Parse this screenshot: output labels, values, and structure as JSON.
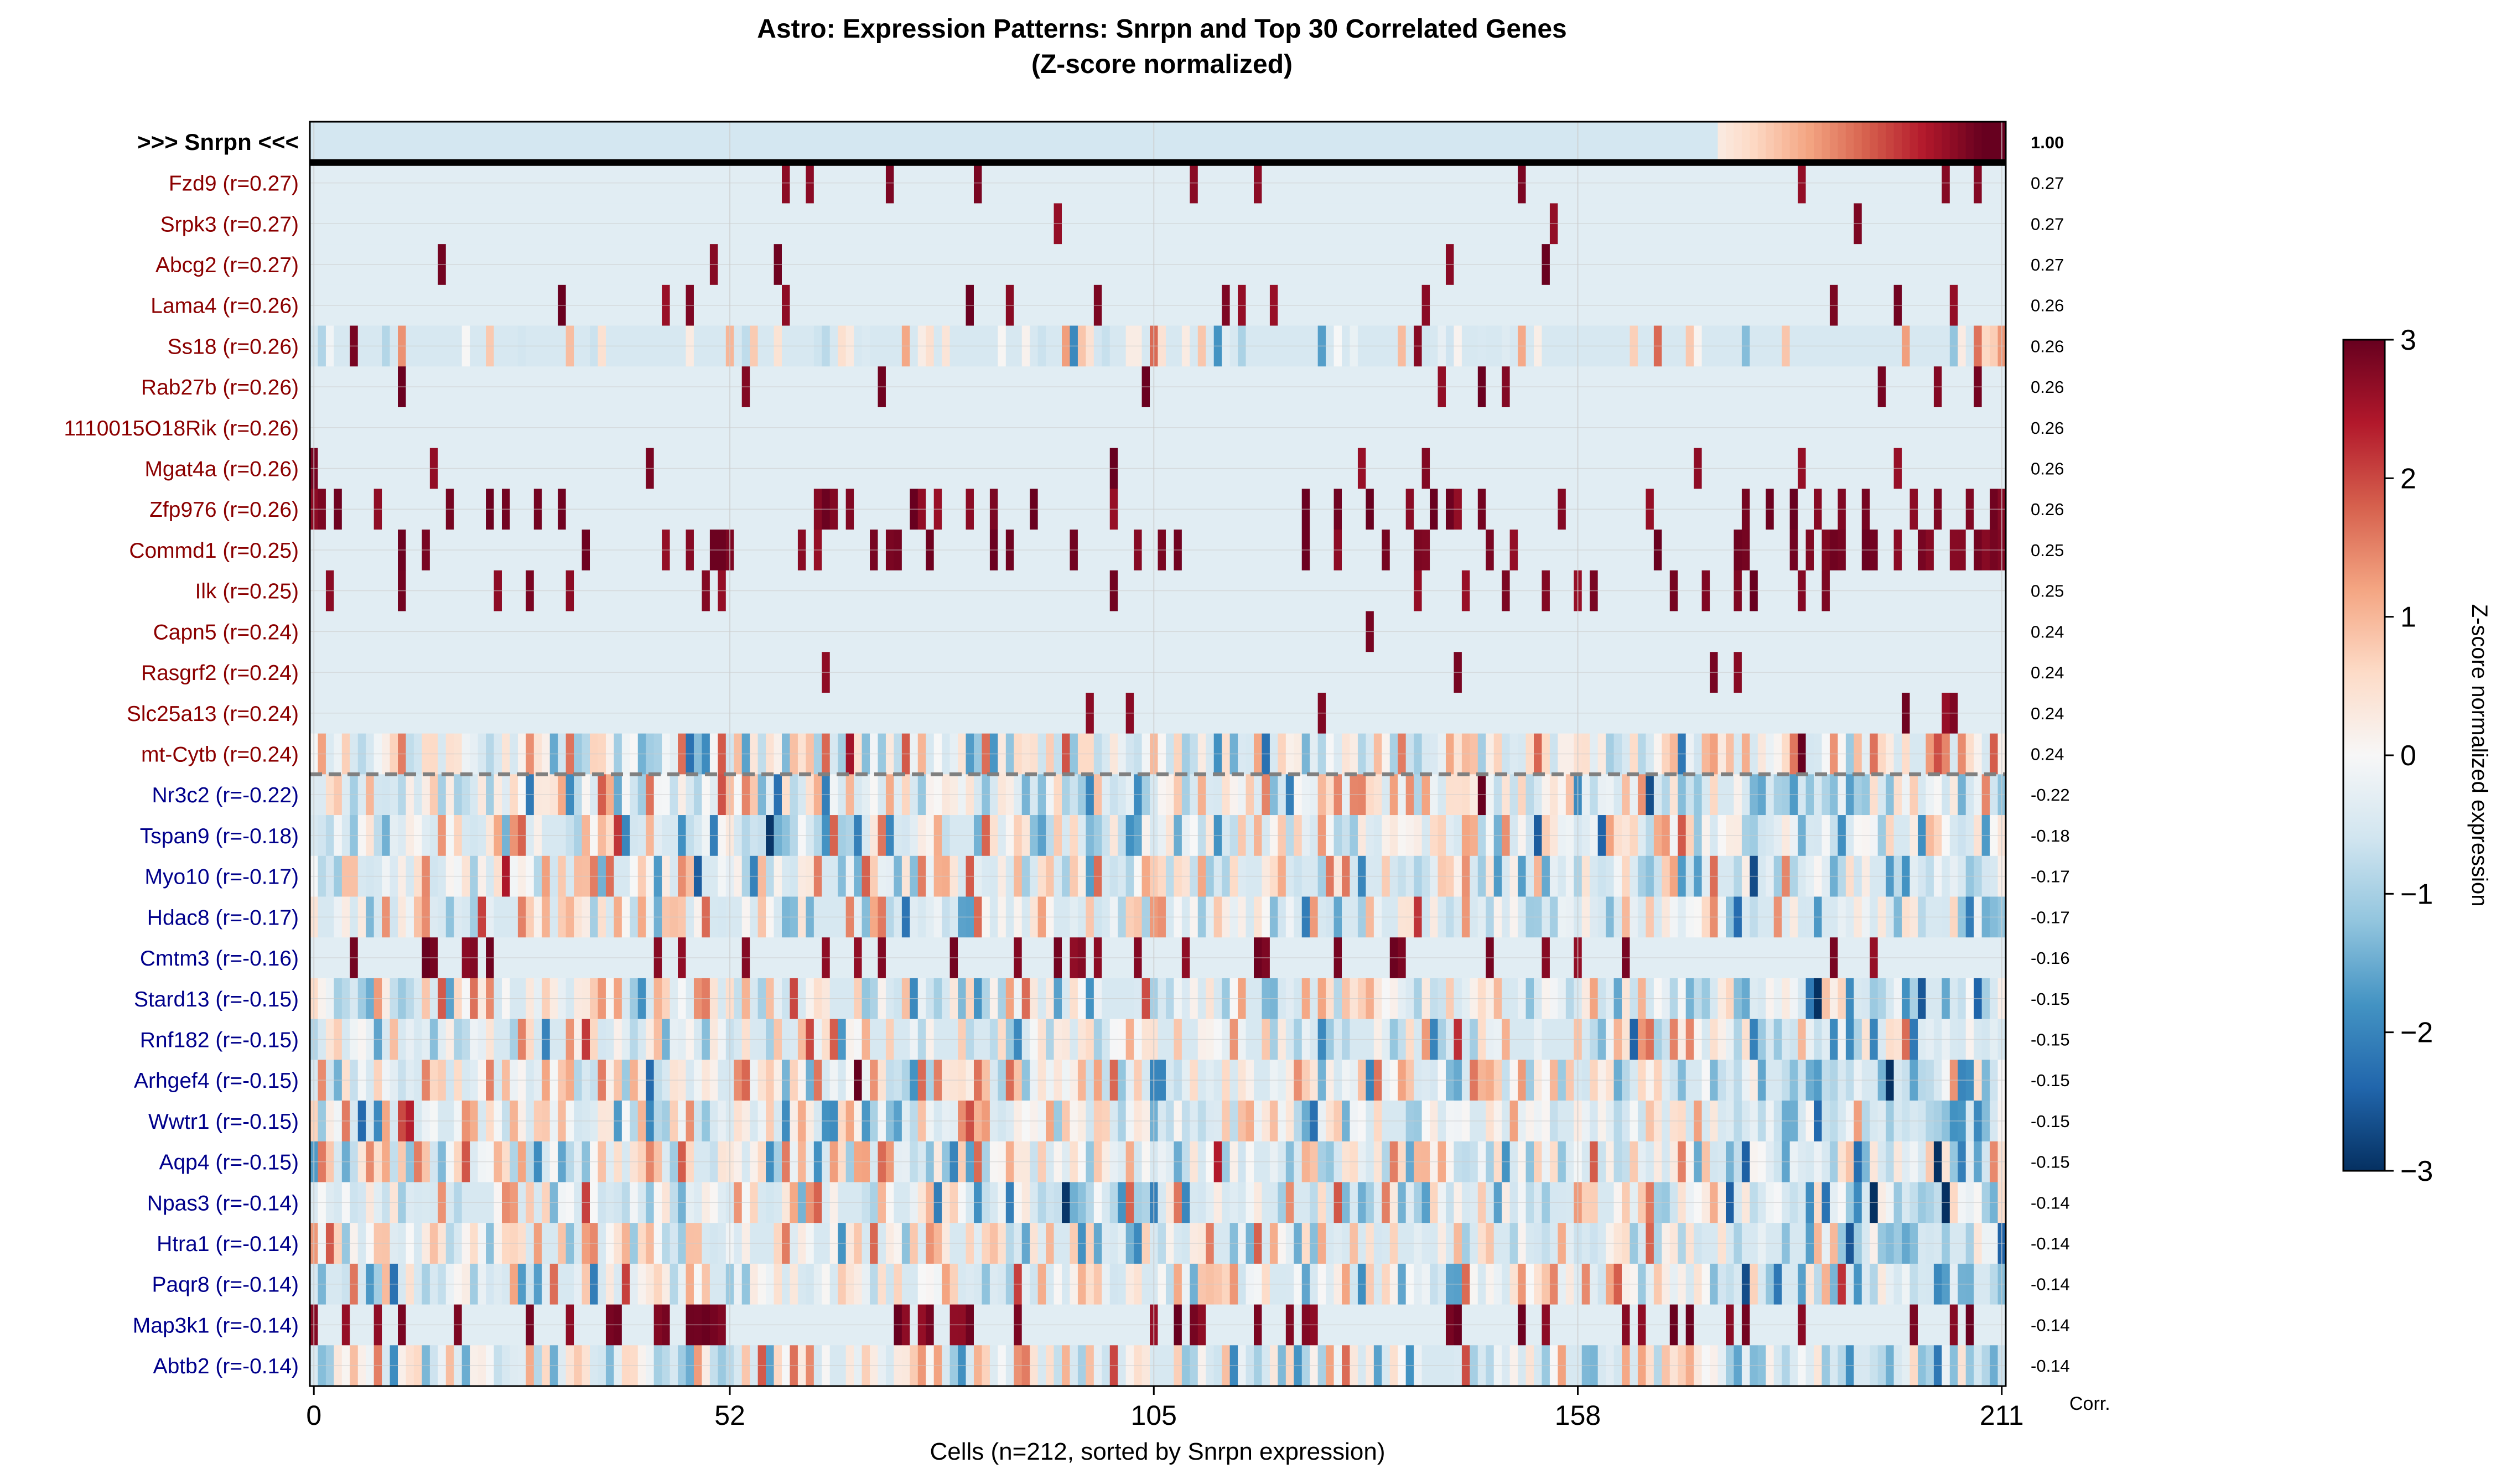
{
  "chart_data": {
    "type": "heatmap",
    "title": "Astro: Expression Patterns: Snrpn and Top 30 Correlated Genes",
    "subtitle": "(Z-score normalized)",
    "xlabel": "Cells (n=212, sorted by Snrpn expression)",
    "x_ticks": [
      0,
      52,
      105,
      158,
      211
    ],
    "n_cells": 212,
    "corr_label": "Corr.",
    "colorbar": {
      "label": "Z-score normalized expression",
      "min": -3,
      "max": 3,
      "ticks": [
        "3",
        "2",
        "1",
        "0",
        "−1",
        "−2",
        "−3"
      ],
      "colormap": "RdBu_r"
    },
    "colors": {
      "positive_label": "#8b0000",
      "negative_label": "#00008b",
      "target_label": "#000000",
      "separator": "#000000",
      "dashed_separator": "#808080",
      "grid": "#cccccc"
    },
    "target_row": {
      "label": ">>> Snrpn <<<",
      "corr": "1.00"
    },
    "rows": [
      {
        "label": "Fzd9 (r=0.27)",
        "corr": "0.27",
        "sign": "pos",
        "style": "sparse",
        "density": 0.06
      },
      {
        "label": "Srpk3 (r=0.27)",
        "corr": "0.27",
        "sign": "pos",
        "style": "sparse",
        "density": 0.015
      },
      {
        "label": "Abcg2 (r=0.27)",
        "corr": "0.27",
        "sign": "pos",
        "style": "sparse",
        "density": 0.015
      },
      {
        "label": "Lama4 (r=0.26)",
        "corr": "0.26",
        "sign": "pos",
        "style": "sparse",
        "density": 0.04
      },
      {
        "label": "Ss18 (r=0.26)",
        "corr": "0.26",
        "sign": "pos",
        "style": "dense",
        "density": 0.35
      },
      {
        "label": "Rab27b (r=0.26)",
        "corr": "0.26",
        "sign": "pos",
        "style": "sparse",
        "density": 0.03
      },
      {
        "label": "1110015O18Rik (r=0.26)",
        "corr": "0.26",
        "sign": "pos",
        "style": "sparse",
        "density": 0.005
      },
      {
        "label": "Mgat4a (r=0.26)",
        "corr": "0.26",
        "sign": "pos",
        "style": "sparse",
        "density": 0.03
      },
      {
        "label": "Zfp976 (r=0.26)",
        "corr": "0.26",
        "sign": "pos",
        "style": "sparse",
        "density": 0.12
      },
      {
        "label": "Commd1 (r=0.25)",
        "corr": "0.25",
        "sign": "pos",
        "style": "sparse",
        "density": 0.22
      },
      {
        "label": "Ilk (r=0.25)",
        "corr": "0.25",
        "sign": "pos",
        "style": "sparse",
        "density": 0.07
      },
      {
        "label": "Capn5 (r=0.24)",
        "corr": "0.24",
        "sign": "pos",
        "style": "sparse",
        "density": 0.01
      },
      {
        "label": "Rasgrf2 (r=0.24)",
        "corr": "0.24",
        "sign": "pos",
        "style": "sparse",
        "density": 0.03
      },
      {
        "label": "Slc25a13 (r=0.24)",
        "corr": "0.24",
        "sign": "pos",
        "style": "sparse",
        "density": 0.03
      },
      {
        "label": "mt-Cytb (r=0.24)",
        "corr": "0.24",
        "sign": "pos",
        "style": "dense",
        "density": 0.9
      },
      {
        "label": "Nr3c2 (r=-0.22)",
        "corr": "-0.22",
        "sign": "neg",
        "style": "dense",
        "density": 0.9
      },
      {
        "label": "Tspan9 (r=-0.18)",
        "corr": "-0.18",
        "sign": "neg",
        "style": "dense",
        "density": 0.85
      },
      {
        "label": "Myo10 (r=-0.17)",
        "corr": "-0.17",
        "sign": "neg",
        "style": "dense",
        "density": 0.85
      },
      {
        "label": "Hdac8 (r=-0.17)",
        "corr": "-0.17",
        "sign": "neg",
        "style": "dense",
        "density": 0.7
      },
      {
        "label": "Cmtm3 (r=-0.16)",
        "corr": "-0.16",
        "sign": "neg",
        "style": "sparse",
        "density": 0.14
      },
      {
        "label": "Stard13 (r=-0.15)",
        "corr": "-0.15",
        "sign": "neg",
        "style": "dense",
        "density": 0.85
      },
      {
        "label": "Rnf182 (r=-0.15)",
        "corr": "-0.15",
        "sign": "neg",
        "style": "dense",
        "density": 0.75
      },
      {
        "label": "Arhgef4 (r=-0.15)",
        "corr": "-0.15",
        "sign": "neg",
        "style": "dense",
        "density": 0.85
      },
      {
        "label": "Wwtr1 (r=-0.15)",
        "corr": "-0.15",
        "sign": "neg",
        "style": "dense",
        "density": 0.85
      },
      {
        "label": "Aqp4 (r=-0.15)",
        "corr": "-0.15",
        "sign": "neg",
        "style": "dense",
        "density": 0.85
      },
      {
        "label": "Npas3 (r=-0.14)",
        "corr": "-0.14",
        "sign": "neg",
        "style": "dense",
        "density": 0.8
      },
      {
        "label": "Htra1 (r=-0.14)",
        "corr": "-0.14",
        "sign": "neg",
        "style": "dense",
        "density": 0.8
      },
      {
        "label": "Paqr8 (r=-0.14)",
        "corr": "-0.14",
        "sign": "neg",
        "style": "dense",
        "density": 0.8
      },
      {
        "label": "Map3k1 (r=-0.14)",
        "corr": "-0.14",
        "sign": "neg",
        "style": "sparse",
        "density": 0.25
      },
      {
        "label": "Abtb2 (r=-0.14)",
        "corr": "-0.14",
        "sign": "neg",
        "style": "dense",
        "density": 0.85
      }
    ]
  }
}
